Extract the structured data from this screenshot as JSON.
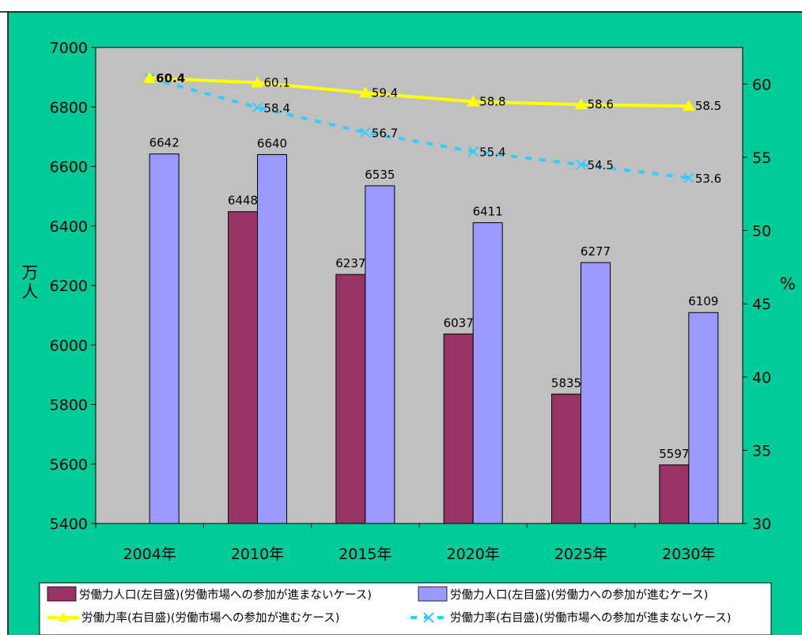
{
  "chart_data": {
    "type": "bar",
    "categories": [
      "2004年",
      "2010年",
      "2015年",
      "2020年",
      "2025年",
      "2030年"
    ],
    "ylabel": "万人",
    "y2label": "%",
    "ylim": [
      5400,
      7000
    ],
    "y2lim": [
      30,
      62.5
    ],
    "yticks": [
      "5400",
      "5600",
      "5800",
      "6000",
      "6200",
      "6400",
      "6600",
      "6800",
      "7000"
    ],
    "y2ticks": [
      "30",
      "35",
      "40",
      "45",
      "50",
      "55",
      "60"
    ],
    "grid": false,
    "legend_position": "bottom",
    "series": [
      {
        "name": "労働力人口(左目盛)(労働市場への参加が進まないケース)",
        "type": "bar",
        "axis": "left",
        "values": [
          null,
          6448,
          6237,
          6037,
          5835,
          5597
        ],
        "labels": [
          "",
          "6448",
          "6237",
          "6037",
          "5835",
          "5597"
        ]
      },
      {
        "name": "労働力人口(左目盛)(労働力への参加が進むケース)",
        "type": "bar",
        "axis": "left",
        "values": [
          6642,
          6640,
          6535,
          6411,
          6277,
          6109
        ],
        "labels": [
          "6642",
          "6640",
          "6535",
          "6411",
          "6277",
          "6109"
        ]
      },
      {
        "name": "労働力率(右目盛)(労働市場への参加が進むケース)",
        "type": "line",
        "axis": "right",
        "values": [
          60.4,
          60.1,
          59.4,
          58.8,
          58.6,
          58.5
        ],
        "labels": [
          "60.4",
          "60.1",
          "59.4",
          "58.8",
          "58.6",
          "58.5"
        ]
      },
      {
        "name": "労働力率(右目盛)(労働市場への参加が進まないケース)",
        "type": "line",
        "axis": "right",
        "values": [
          60.4,
          58.4,
          56.7,
          55.4,
          54.5,
          53.6
        ],
        "labels": [
          "",
          "58.4",
          "56.7",
          "55.4",
          "54.5",
          "53.6"
        ]
      }
    ],
    "colors": {
      "background": "#00cc99",
      "plot_area": "#c0c0c0",
      "bar_series_1": "#993366",
      "bar_series_2": "#9999ff",
      "line_series_1": "#ffff00",
      "line_series_2": "#33ccff",
      "legend_background": "#ffffff"
    }
  }
}
